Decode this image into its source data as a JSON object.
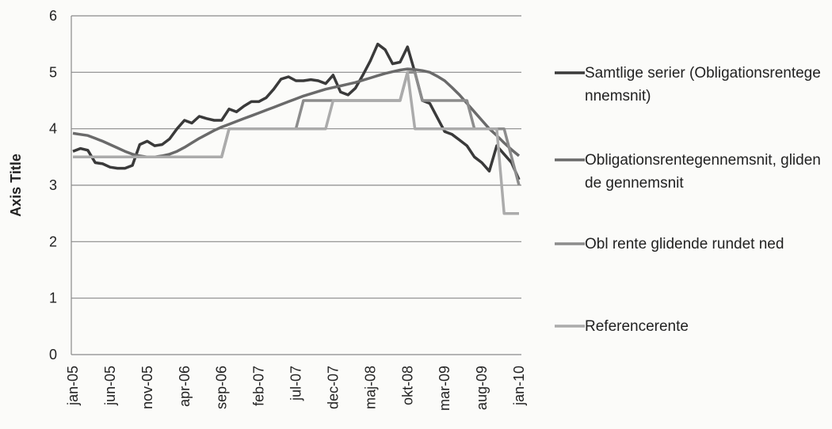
{
  "chart_data": {
    "type": "line",
    "y_axis_label": "Axis Title",
    "categories": [
      "jan-05",
      null,
      null,
      null,
      null,
      "jun-05",
      null,
      null,
      null,
      null,
      "nov-05",
      null,
      null,
      null,
      null,
      "apr-06",
      null,
      null,
      null,
      null,
      "sep-06",
      null,
      null,
      null,
      null,
      "feb-07",
      null,
      null,
      null,
      null,
      "jul-07",
      null,
      null,
      null,
      null,
      "dec-07",
      null,
      null,
      null,
      null,
      "maj-08",
      null,
      null,
      null,
      null,
      "okt-08",
      null,
      null,
      null,
      null,
      "mar-09",
      null,
      null,
      null,
      null,
      "aug-09",
      null,
      null,
      null,
      null,
      "jan-10"
    ],
    "ylim": [
      0,
      6
    ],
    "yticks": [
      0,
      1,
      2,
      3,
      4,
      5,
      6
    ],
    "grid": true,
    "legend": "right",
    "series": [
      {
        "name": "Samtlige serier (Obligationsrentegennemsnit)",
        "color": "#3a3a3a",
        "values": [
          3.6,
          3.65,
          3.62,
          3.4,
          3.38,
          3.32,
          3.3,
          3.3,
          3.35,
          3.72,
          3.78,
          3.7,
          3.72,
          3.82,
          4.0,
          4.15,
          4.1,
          4.22,
          4.18,
          4.15,
          4.15,
          4.35,
          4.3,
          4.4,
          4.48,
          4.48,
          4.55,
          4.7,
          4.88,
          4.92,
          4.85,
          4.85,
          4.87,
          4.85,
          4.8,
          4.95,
          4.65,
          4.6,
          4.72,
          4.95,
          5.2,
          5.5,
          5.4,
          5.15,
          5.18,
          5.45,
          5.0,
          4.5,
          4.45,
          4.2,
          3.95,
          3.9,
          3.8,
          3.7,
          3.5,
          3.4,
          3.25,
          3.7,
          3.55,
          3.4,
          3.1
        ]
      },
      {
        "name": "Obligationsrentegennemsnit, glidende gennemsnit",
        "color": "#6a6a6a",
        "values": [
          3.92,
          3.9,
          3.88,
          3.83,
          3.78,
          3.72,
          3.66,
          3.6,
          3.55,
          3.52,
          3.5,
          3.5,
          3.52,
          3.55,
          3.6,
          3.67,
          3.75,
          3.83,
          3.9,
          3.97,
          4.03,
          4.08,
          4.13,
          4.18,
          4.23,
          4.28,
          4.33,
          4.38,
          4.43,
          4.48,
          4.53,
          4.58,
          4.62,
          4.66,
          4.7,
          4.73,
          4.76,
          4.79,
          4.82,
          4.86,
          4.9,
          4.94,
          4.98,
          5.01,
          5.04,
          5.06,
          5.05,
          5.03,
          5.0,
          4.93,
          4.85,
          4.73,
          4.6,
          4.45,
          4.3,
          4.15,
          4.0,
          3.88,
          3.75,
          3.63,
          3.52
        ]
      },
      {
        "name": "Obl rente glidende rundet ned",
        "color": "#8c8c8c",
        "values": [
          3.5,
          3.5,
          3.5,
          3.5,
          3.5,
          3.5,
          3.5,
          3.5,
          3.5,
          3.5,
          3.5,
          3.5,
          3.5,
          3.5,
          3.5,
          3.5,
          3.5,
          3.5,
          3.5,
          3.5,
          3.5,
          4.0,
          4.0,
          4.0,
          4.0,
          4.0,
          4.0,
          4.0,
          4.0,
          4.0,
          4.0,
          4.5,
          4.5,
          4.5,
          4.5,
          4.5,
          4.5,
          4.5,
          4.5,
          4.5,
          4.5,
          4.5,
          4.5,
          4.5,
          4.5,
          5.0,
          5.0,
          4.5,
          4.5,
          4.5,
          4.5,
          4.5,
          4.5,
          4.5,
          4.0,
          4.0,
          4.0,
          4.0,
          4.0,
          3.5,
          3.0
        ]
      },
      {
        "name": "Referencerente",
        "color": "#ababab",
        "values": [
          3.5,
          3.5,
          3.5,
          3.5,
          3.5,
          3.5,
          3.5,
          3.5,
          3.5,
          3.5,
          3.5,
          3.5,
          3.5,
          3.5,
          3.5,
          3.5,
          3.5,
          3.5,
          3.5,
          3.5,
          3.5,
          4.0,
          4.0,
          4.0,
          4.0,
          4.0,
          4.0,
          4.0,
          4.0,
          4.0,
          4.0,
          4.0,
          4.0,
          4.0,
          4.0,
          4.5,
          4.5,
          4.5,
          4.5,
          4.5,
          4.5,
          4.5,
          4.5,
          4.5,
          4.5,
          5.0,
          4.0,
          4.0,
          4.0,
          4.0,
          4.0,
          4.0,
          4.0,
          4.0,
          4.0,
          4.0,
          4.0,
          4.0,
          2.5,
          2.5,
          2.5
        ]
      }
    ]
  }
}
